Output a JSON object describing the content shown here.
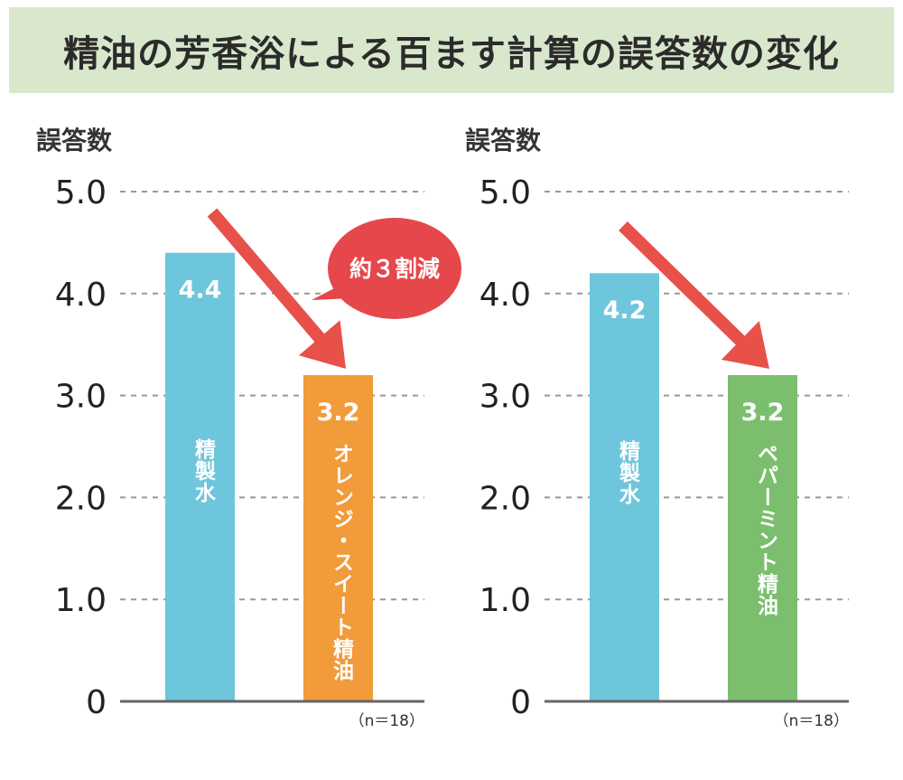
{
  "title": "精油の芳香浴による百ます計算の誤答数の変化",
  "annotation": "約３割減",
  "chart_data": [
    {
      "type": "bar",
      "ylabel": "誤答数",
      "categories": [
        "精製水",
        "オレンジ・スイート精油"
      ],
      "values": [
        4.4,
        3.2
      ],
      "value_labels": [
        "4.4",
        "3.2"
      ],
      "colors": [
        "#6ec6dc",
        "#f29b3a"
      ],
      "ylim": [
        0,
        5.0
      ],
      "yticks": [
        "0",
        "1.0",
        "2.0",
        "3.0",
        "4.0",
        "5.0"
      ],
      "grid": true,
      "note": "（n＝18）"
    },
    {
      "type": "bar",
      "ylabel": "誤答数",
      "categories": [
        "精製水",
        "ペパーミント精油"
      ],
      "values": [
        4.2,
        3.2
      ],
      "value_labels": [
        "4.2",
        "3.2"
      ],
      "colors": [
        "#6ec6dc",
        "#7bbf6e"
      ],
      "ylim": [
        0,
        5.0
      ],
      "yticks": [
        "0",
        "1.0",
        "2.0",
        "3.0",
        "4.0",
        "5.0"
      ],
      "grid": true,
      "note": "（n＝18）"
    }
  ],
  "arrow_color": "#e8504a"
}
